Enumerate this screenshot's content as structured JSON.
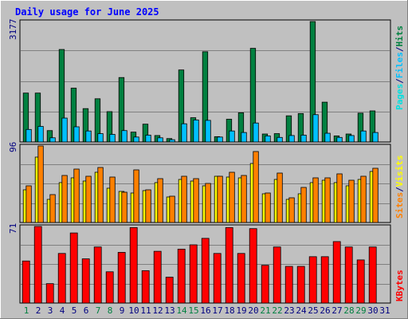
{
  "chart_data": {
    "type": "bar",
    "title": "Daily usage for June 2025",
    "categories": [
      "1",
      "2",
      "3",
      "4",
      "5",
      "6",
      "7",
      "8",
      "9",
      "10",
      "11",
      "12",
      "13",
      "14",
      "15",
      "16",
      "17",
      "18",
      "19",
      "20",
      "21",
      "22",
      "23",
      "24",
      "25",
      "26",
      "27",
      "28",
      "29",
      "30",
      "31"
    ],
    "weekend_days": [
      "1",
      "7",
      "8",
      "14",
      "15",
      "21",
      "22",
      "28",
      "29"
    ],
    "panels": [
      {
        "id": "hits-files-pages",
        "ymax_label": "3177",
        "ymax": 3177,
        "side_label_parts": [
          "Pages",
          "/",
          "Files",
          "/",
          "Hits"
        ],
        "series": [
          {
            "name": "Hits",
            "values": [
              1290,
              1290,
              300,
              2440,
              1420,
              880,
              1140,
              800,
              1700,
              260,
              470,
              170,
              90,
              1900,
              640,
              2380,
              140,
              600,
              770,
              2470,
              210,
              220,
              690,
              750,
              3177,
              1050,
              160,
              210,
              760,
              820,
              0
            ]
          },
          {
            "name": "Files",
            "values": [
              330,
              410,
              110,
              630,
              400,
              290,
              220,
              200,
              300,
              130,
              180,
              110,
              60,
              480,
              580,
              570,
              130,
              290,
              250,
              500,
              160,
              120,
              170,
              180,
              720,
              230,
              120,
              170,
              290,
              250,
              0
            ]
          },
          {
            "name": "Pages",
            "values": [
              0,
              0,
              0,
              0,
              0,
              0,
              0,
              0,
              0,
              0,
              0,
              0,
              0,
              0,
              0,
              0,
              0,
              0,
              0,
              0,
              0,
              0,
              0,
              0,
              0,
              0,
              0,
              0,
              0,
              0,
              0
            ]
          }
        ]
      },
      {
        "id": "visits-sites",
        "ymax_label": "96",
        "ymax": 96,
        "side_label_parts": [
          "Sites",
          "/",
          "Visits"
        ],
        "series": [
          {
            "name": "Visits",
            "values": [
              41,
              82,
              29,
              50,
              56,
              52,
              63,
              43,
              39,
              37,
              40,
              50,
              32,
              54,
              52,
              46,
              58,
              57,
              56,
              74,
              36,
              54,
              29,
              36,
              50,
              53,
              50,
              46,
              54,
              64,
              0
            ]
          },
          {
            "name": "Sites",
            "values": [
              46,
              96,
              35,
              59,
              67,
              58,
              69,
              57,
              38,
              66,
              41,
              55,
              33,
              58,
              55,
              49,
              58,
              63,
              59,
              89,
              37,
              62,
              31,
              44,
              56,
              56,
              61,
              53,
              58,
              68,
              0
            ]
          }
        ]
      },
      {
        "id": "kbytes",
        "ymax_label": "71",
        "ymax": 71,
        "side_label_parts": [
          "KBytes"
        ],
        "series": [
          {
            "name": "KBytes",
            "values": [
              39,
              71,
              18,
              46,
              65,
              41,
              52,
              29,
              47,
              70,
              30,
              48,
              24,
              50,
              54,
              60,
              46,
              70,
              46,
              69,
              35,
              52,
              34,
              34,
              43,
              43,
              57,
              52,
              40,
              52,
              0
            ]
          }
        ]
      }
    ],
    "colors": {
      "hits": "#008040",
      "files": "#00c0ff",
      "pages": "#00e0e0",
      "visits": "#ffff00",
      "sites": "#ff8000",
      "kbytes": "#ff0000",
      "title": "#0000ff",
      "axis_text": "#000080",
      "weekend": "#008040",
      "plot_bg": "#c0c0c0"
    }
  }
}
